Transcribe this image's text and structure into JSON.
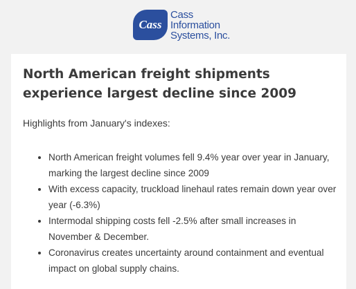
{
  "header": {
    "logo_mark": "Cass",
    "logo_lines": [
      "Cass",
      "Information",
      "Systems, Inc."
    ]
  },
  "article": {
    "title": "North American freight shipments experience largest decline since 2009",
    "intro": "Highlights from January's indexes:",
    "bullets": [
      "North American freight volumes fell 9.4% year over year in January, marking the largest decline since 2009",
      "With excess capacity, truckload linehaul rates remain down year over year (-6.3%)",
      "Intermodal shipping costs fell -2.5% after small increases in November & December.",
      "Coronavirus creates uncertainty around containment and eventual impact on global supply chains."
    ]
  }
}
